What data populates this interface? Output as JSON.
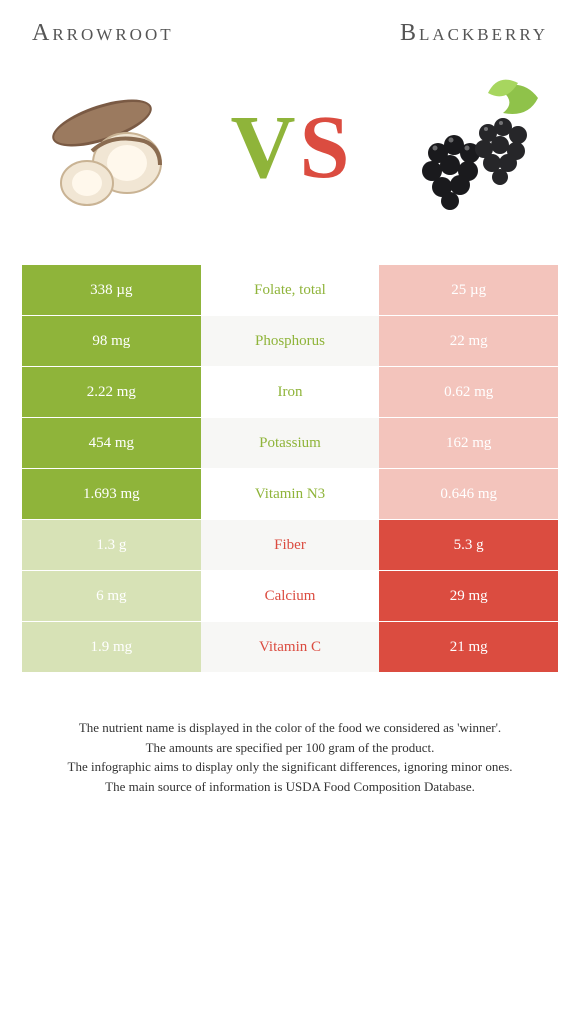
{
  "header": {
    "left_title": "Arrowroot",
    "right_title": "Blackberry",
    "vs_v": "V",
    "vs_s": "S"
  },
  "colors": {
    "left_solid": "#8fb43a",
    "left_faded": "#d7e2b6",
    "right_solid": "#db4c40",
    "right_faded": "#f3c4bc",
    "row_alt_label_bg": "#f7f7f5",
    "row_label_bg": "#ffffff",
    "label_left": "#8fb43a",
    "label_right": "#db4c40",
    "vs_v_color": "#8fb43a",
    "vs_s_color": "#db4c40"
  },
  "rows": [
    {
      "label": "Folate, total",
      "left": "338 µg",
      "right": "25 µg",
      "winner": "left"
    },
    {
      "label": "Phosphorus",
      "left": "98 mg",
      "right": "22 mg",
      "winner": "left"
    },
    {
      "label": "Iron",
      "left": "2.22 mg",
      "right": "0.62 mg",
      "winner": "left"
    },
    {
      "label": "Potassium",
      "left": "454 mg",
      "right": "162 mg",
      "winner": "left"
    },
    {
      "label": "Vitamin N3",
      "left": "1.693 mg",
      "right": "0.646 mg",
      "winner": "left"
    },
    {
      "label": "Fiber",
      "left": "1.3 g",
      "right": "5.3 g",
      "winner": "right"
    },
    {
      "label": "Calcium",
      "left": "6 mg",
      "right": "29 mg",
      "winner": "right"
    },
    {
      "label": "Vitamin C",
      "left": "1.9 mg",
      "right": "21 mg",
      "winner": "right"
    }
  ],
  "footnotes": [
    "The nutrient name is displayed in the color of the food we considered as 'winner'.",
    "The amounts are specified per 100 gram of the product.",
    "The infographic aims to display only the significant differences, ignoring minor ones.",
    "The main source of information is USDA Food Composition Database."
  ]
}
